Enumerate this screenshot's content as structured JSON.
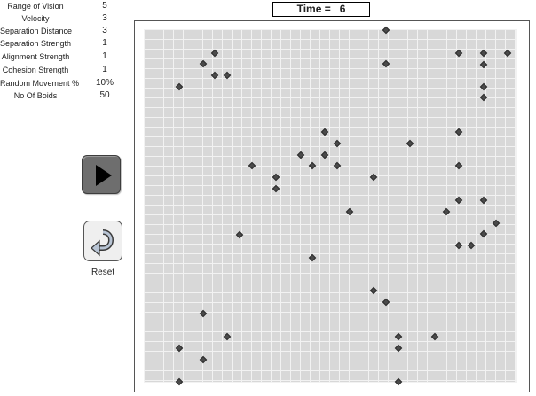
{
  "parameters": [
    {
      "label": "Range of Vision",
      "value": "5"
    },
    {
      "label": "Velocity",
      "value": "3"
    },
    {
      "label": "Separation Distance",
      "value": "3"
    },
    {
      "label": "Separation Strength",
      "value": "1"
    },
    {
      "label": "Alignment Strength",
      "value": "1"
    },
    {
      "label": "Cohesion Strength",
      "value": "1"
    },
    {
      "label": "Random Movement %",
      "value": "10%"
    },
    {
      "label": "No Of Boids",
      "value": "50"
    }
  ],
  "time": {
    "label": "Time =",
    "value": "6"
  },
  "controls": {
    "play_icon": "play-icon",
    "reset_icon": "undo-arrow-icon",
    "reset_label": "Reset"
  },
  "colors": {
    "grid_background": "#d8d8d8",
    "grid_lines": "#f2f2f2",
    "boid": "#4a4a4a",
    "play_button": "#6e6e6e"
  }
}
